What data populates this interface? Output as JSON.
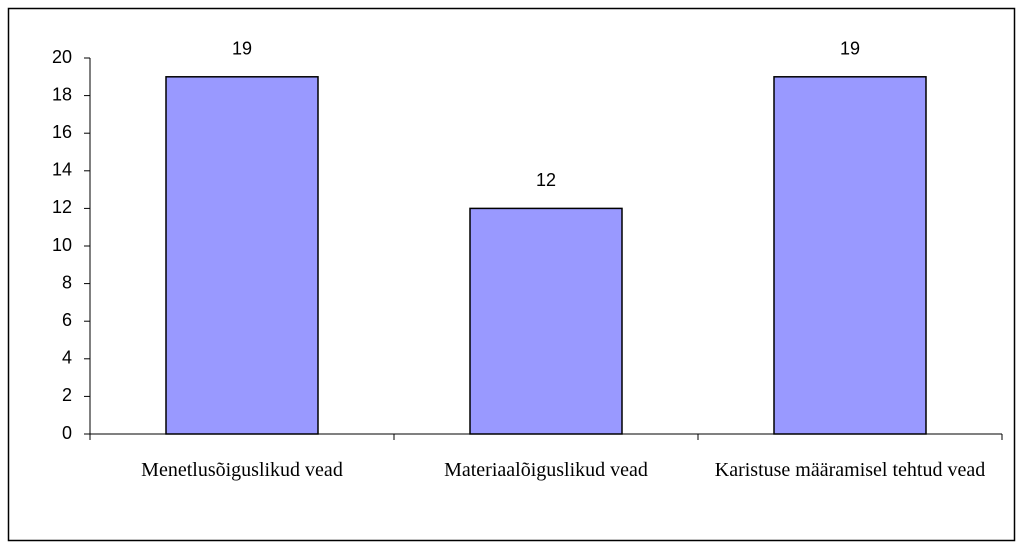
{
  "chart_data": {
    "type": "bar",
    "categories": [
      "Menetlusõiguslikud vead",
      "Materiaalõiguslikud vead",
      "Karistuse määramisel tehtud vead"
    ],
    "values": [
      19,
      12,
      19
    ],
    "color": "#9999ff",
    "ylim": [
      0,
      20
    ],
    "yticks": [
      0,
      2,
      4,
      6,
      8,
      10,
      12,
      14,
      16,
      18,
      20
    ],
    "grid": false
  }
}
